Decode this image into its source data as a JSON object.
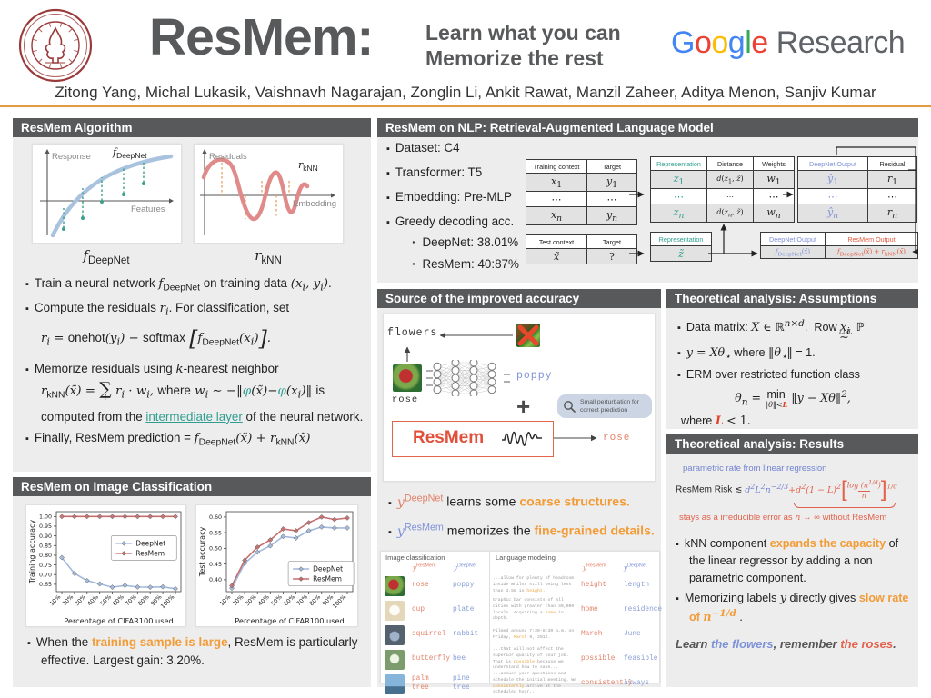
{
  "header": {
    "title": "ResMem:",
    "tagline1": "Learn what you can",
    "tagline2": "Memorize the rest",
    "google": {
      "letters": [
        {
          "ch": "G",
          "color": "#4285F4"
        },
        {
          "ch": "o",
          "color": "#EA4335"
        },
        {
          "ch": "o",
          "color": "#FBBC05"
        },
        {
          "ch": "g",
          "color": "#4285F4"
        },
        {
          "ch": "l",
          "color": "#34A853"
        },
        {
          "ch": "e",
          "color": "#EA4335"
        }
      ],
      "suffix": "Research"
    },
    "authors": "Zitong Yang, Michal Lukasik, Vaishnavh Nagarajan, Zonglin Li, Ankit Rawat, Manzil Zaheer, Aditya Menon, Sanjiv Kumar"
  },
  "colors": {
    "bar": "#58595B",
    "panel": "#EDEDED",
    "accent_orange": "#F29C38",
    "teal": "#2F9E8F",
    "deepnet_blue": "#7E92D8",
    "resmem_red": "#E35A3F",
    "divider_orange": "#E39A40"
  },
  "algorithm": {
    "title": "ResMem Algorithm",
    "fig1": {
      "ylabel": "Response",
      "xlabel": "Features",
      "curve_html": "<i>f</i><sub class='rsub'>DeepNet</sub>"
    },
    "fig2": {
      "ylabel": "Residuals",
      "xlabel": "Embedding",
      "curve_html": "<i>r</i><sub class='rsub'>kNN</sub>"
    },
    "caption1_html": "<span class='m'><i>f</i><sub class='rsub'>DeepNet</sub></span>",
    "caption2_html": "<span class='m'><i>r</i><sub class='rsub'>kNN</sub></span>",
    "bullets": [
      {
        "t": "b",
        "h": "Train a neural network <span class='m'><i>f</i><sub class='rsub'>DeepNet</sub></span> on training data <span class='m'>(<i>x<sub>i</sub></i>, <i>y<sub>i</sub></i>)</span>."
      },
      {
        "t": "b",
        "h": "Compute the residuals <span class='m'><i>r<sub>i</sub></i></span>. For classification, set"
      },
      {
        "t": "f",
        "h": "<span class='m'><i>r<sub>i</sub></i> = <span class='rup'>onehot</span>(<i>y<sub>i</sub></i>) − <span class='rup'>softmax</span> <span class='bigbr'>[</span><i>f</i><sub class='rsub'>DeepNet</sub>(<i>x<sub>i</sub></i>)<span class='bigbr'>]</span>.</span>"
      },
      {
        "t": "b",
        "h": "Memorize residuals using <span class='m'><i>k</i></span>-nearest neighbor"
      },
      {
        "t": "f",
        "h": "<span class='m'><i>r</i><sub class='rsub'>kNN</sub>(<i>x̃</i>) = <span class='sumwrap'><span class='sum'>∑</span><span class='sumsub'><i>i</i></span></span> <i>r<sub>i</sub></i> · <i>w<sub>i</sub></i>, <span class='rup2'>where</span> <i>w<sub>i</sub></i> ∼ −‖<span class='teal'>φ</span>(<i>x̃</i>)−<span class='teal'>φ</span>(<i>x<sub>i</sub></i>)‖ <span class='rup2'>is</span></span>"
      },
      {
        "t": "c",
        "h": "computed from the <span class='teal-link' data-interactable='true'>intermediate layer</span> of the neural network."
      },
      {
        "t": "b",
        "h": "Finally, ResMem prediction = <span class='m'><i>f</i><sub class='rsub'>DeepNet</sub>(<i>x̃</i>) + <i>r</i><sub class='rsub'>kNN</sub>(<i>x̃</i>)</span>"
      }
    ]
  },
  "image_cls": {
    "title": "ResMem on Image Classification",
    "note_html": "When the <b class='org'>training sample is large</b>, ResMem is particularly effective. Largest gain: 3.20%."
  },
  "chart_data": [
    {
      "type": "line",
      "title": "",
      "xlabel": "Percentage of CIFAR100 used",
      "ylabel": "Training accuracy",
      "categories": [
        "10%",
        "20%",
        "30%",
        "40%",
        "50%",
        "60%",
        "70%",
        "80%",
        "90%",
        "100%"
      ],
      "ylim": [
        0.612,
        1.025
      ],
      "yticks": [
        0.65,
        0.7,
        0.75,
        0.8,
        0.85,
        0.9,
        0.95,
        1.0
      ],
      "legend_pos": "center-right",
      "grid": false,
      "series": [
        {
          "name": "DeepNet",
          "color": "#A2B9DB",
          "values": [
            0.788,
            0.706,
            0.669,
            0.652,
            0.635,
            0.644,
            0.636,
            0.635,
            0.637,
            0.627
          ]
        },
        {
          "name": "ResMem",
          "color": "#C66E6E",
          "values": [
            1.0,
            1.0,
            1.0,
            1.0,
            1.0,
            1.0,
            1.0,
            1.0,
            1.0,
            1.0
          ]
        }
      ]
    },
    {
      "type": "line",
      "title": "",
      "xlabel": "Percentage of CIFAR100 used",
      "ylabel": "Test accuracy",
      "categories": [
        "10%",
        "20%",
        "30%",
        "40%",
        "50%",
        "60%",
        "70%",
        "80%",
        "90%",
        "100%"
      ],
      "ylim": [
        0.362,
        0.617
      ],
      "yticks": [
        0.4,
        0.45,
        0.5,
        0.55,
        0.6
      ],
      "legend_pos": "bottom-right",
      "grid": false,
      "series": [
        {
          "name": "DeepNet",
          "color": "#A2B9DB",
          "values": [
            0.373,
            0.452,
            0.488,
            0.508,
            0.538,
            0.533,
            0.556,
            0.568,
            0.565,
            0.565
          ]
        },
        {
          "name": "ResMem",
          "color": "#C66E6E",
          "values": [
            0.381,
            0.462,
            0.504,
            0.527,
            0.562,
            0.556,
            0.582,
            0.6,
            0.592,
            0.597
          ]
        }
      ]
    }
  ],
  "nlp": {
    "title": "ResMem on NLP: Retrieval-Augmented Language Model",
    "bullets": [
      "Dataset: C4",
      "Transformer: T5",
      "Embedding: Pre-MLP",
      "Greedy decoding acc."
    ],
    "subbullets": [
      "DeepNet: 38.01%",
      "ResMem: 40:87%"
    ],
    "tables": {
      "train": {
        "headers": [
          "Training context",
          "Target"
        ],
        "rows": [
          [
            "<i>x</i><sub>1</sub>",
            "<i>y</i><sub>1</sub>"
          ],
          [
            "⋯",
            "⋯"
          ],
          [
            "<i>x<sub>n</sub></i>",
            "<i>y<sub>n</sub></i>"
          ]
        ]
      },
      "repr": {
        "headers": [
          "Representation",
          "Distance",
          "Weights"
        ],
        "rows": [
          [
            "<i>z</i><sub>1</sub>",
            "<i>d</i>(<i>z</i><sub>1</sub>, <i>z̃</i>)",
            "<i>w</i><sub>1</sub>"
          ],
          [
            "⋯",
            "⋯",
            "⋯"
          ],
          [
            "<i>z<sub>n</sub></i>",
            "<i>d</i>(<i>z<sub>n</sub></i>, <i>z̃</i>)",
            "<i>w<sub>n</sub></i>"
          ]
        ]
      },
      "out": {
        "headers": [
          "DeepNet Output",
          "Residual"
        ],
        "rows": [
          [
            "<i>ŷ</i><sub>1</sub>",
            "<i>r</i><sub>1</sub>"
          ],
          [
            "⋯",
            "⋯"
          ],
          [
            "<i>ŷ<sub>n</sub></i>",
            "<i>r<sub>n</sub></i>"
          ]
        ]
      },
      "test": {
        "headers": [
          "Test context",
          "Target"
        ],
        "rows": [
          [
            "<i>x̃</i>",
            "?"
          ]
        ]
      },
      "testrepr": {
        "headers": [
          "Representation"
        ],
        "rows": [
          [
            "<i>z̃</i>"
          ]
        ]
      },
      "pred": {
        "headers": [
          "DeepNet Output",
          "ResMem Output"
        ],
        "rows": [
          [
            "<i>f</i><sub>DeepNet</sub>(<i>x̃</i>)",
            "<i>f</i><sub>DeepNet</sub>(<i>x̃</i>) + <i>r</i><sub>kNN</sub>(<i>x̃</i>)"
          ]
        ]
      }
    }
  },
  "source": {
    "title": "Source of the improved accuracy",
    "label_flowers": "flowers",
    "label_rose": "rose",
    "label_poppy": "poppy",
    "plus": "+",
    "bubble_line1": "Small perturbation for",
    "bubble_line2": "correct prediction",
    "resmem_label": "ResMem",
    "label_rose_out": "rose",
    "bullet1_html": "<span class='m salmon'><i>y</i><sup class='rsub'>DeepNet</sup></span> learns some <b class='org'>coarse structures.</b>",
    "bullet2_html": "<span class='m blue'><i>y</i><sup class='rsub'>ResMem</sup></span> memorizes the <b class='org'>fine-grained details.</b>",
    "examples": {
      "img_title": "Image classification",
      "lang_title": "Language modeling",
      "col_resmem_html": "<span class='m salmon'><i>y</i><sup class='rsub'>ResMem</sup></span>",
      "col_deepnet_html": "<span class='m blue'><i>y</i><sup class='rsub'>DeepNet</sup></span>",
      "img_rows": [
        {
          "thumb": "rose",
          "resmem": "rose",
          "deepnet": "poppy"
        },
        {
          "thumb": "cup",
          "resmem": "cup",
          "deepnet": "plate"
        },
        {
          "thumb": "squirrel",
          "resmem": "squirrel",
          "deepnet": "rabbit"
        },
        {
          "thumb": "butterfly",
          "resmem": "butterfly",
          "deepnet": "bee"
        },
        {
          "thumb": "palm",
          "resmem": "palm\ntree",
          "deepnet": "pine\ntree"
        }
      ],
      "lang_rows": [
        {
          "text_html": "...allow for plenty of headroom inside whilst still being less than 3.5m in <span class='org2'>height</span>.",
          "resmem": "height",
          "deepnet": "length"
        },
        {
          "text_html": "Graphic bar consists of all cities with greater than 30,000 locals. Acquiring a <span class='org2'>home</span> in depth.",
          "resmem": "home",
          "deepnet": "residence"
        },
        {
          "text_html": "Filmed around 7:30-8:30 a.m. on Friday, <span class='org2'>March</span> 9, 2012.",
          "resmem": "March",
          "deepnet": "June"
        },
        {
          "text_html": "...that will not affect the superior quality of your job. That is <span class='org2'>possible</span> because we understand how to save...",
          "resmem": "possible",
          "deepnet": "feasible"
        },
        {
          "text_html": "...answer your questions and schedule the initial meeting. We <span class='org2'>consistently</span> arrive at the scheduled hour...",
          "resmem": "consistently",
          "deepnet": "always"
        }
      ]
    }
  },
  "assumptions": {
    "title": "Theoretical analysis: Assumptions",
    "b1_html": "Data matrix: <span class='m'><i>X</i> ∈ <span class='bb'>ℝ</span><sup><i>n</i>×<i>d</i></sup></span>.&nbsp; Row <span class='m'><i>x<sub>i</sub></i></span> <span class='iid'><small>i.i.d.</small><span class='bb'>∼</span></span> <span class='bb'>ℙ</span>",
    "b2_html": "<span class='m'><i>y</i> = <i>Xθ</i><sub>⋆</sub></span> where <span class='m'>‖<i>θ</i><sub>⋆</sub>‖</span> = 1.",
    "b3_html": "ERM over restricted function class",
    "formula_html": "<span class='m'><i>θ<sub>n</sub></i> = </span><span class='minstack'><span>min</span><small>‖<i>θ</i>‖&lt;<b class='redL'>L</b></small></span><span class='m'> ‖<i>y</i> − <i>Xθ</i>‖<sup>2</sup>,</span>",
    "where_html": "where <b class='redL'>L</b> <span class='m' style='font-style:normal'>&lt; 1.</span>"
  },
  "results": {
    "title": "Theoretical analysis: Results",
    "blue_label": "parametric rate from linear regression",
    "risk_prefix": "ResMem Risk",
    "lesssim": "≲",
    "blue_term_html": "<i>d</i><sup>2</sup><i>L</i><sup>2</sup><i>n</i><sup>−2/3</sup>",
    "red_pre_html": "+<i>d</i><sup>2</sup>(1 − <i>L</i>)<sup>2</sup>",
    "frac_num_html": "log (<i>n</i><sup>1/<i>d</i></sup>)",
    "frac_den_html": "<i>n</i>",
    "outer_exp_html": "1/<i>d</i>",
    "red_label_html": "stays as a irreducible error as <span class='m'><i>n</i></span> → ∞ without ResMem",
    "b1_html": "kNN component <b class='org'>expands the capacity</b> of the linear regressor by adding a non parametric component.",
    "b2_html": "Memorizing labels <span class='m'><i>y</i></span> directly gives <b class='org'>slow rate of <span class='m'><i>n</i><sup>−1/<i>d</i></sup></span></b> .",
    "tagline_html": "<i><b style='color:#555'>Learn <span class='blue'>the flowers</span>, remember <span style='color:#E2614C'>the roses</span>.</b></i>"
  }
}
